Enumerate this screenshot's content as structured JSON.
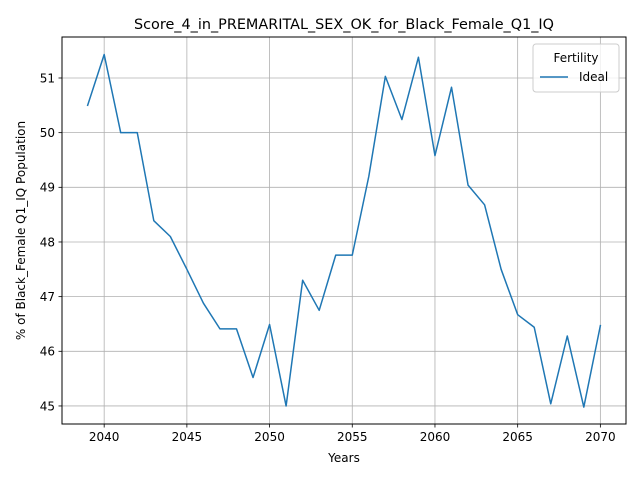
{
  "chart_data": {
    "type": "line",
    "title": "Score_4_in_PREMARITAL_SEX_OK_for_Black_Female_Q1_IQ",
    "xlabel": "Years",
    "ylabel": "% of Black_Female Q1_IQ Population",
    "xlim": [
      2037.45,
      2071.55
    ],
    "ylim": [
      44.67,
      51.75
    ],
    "xticks": [
      2040,
      2045,
      2050,
      2055,
      2060,
      2065,
      2070
    ],
    "yticks": [
      45,
      46,
      47,
      48,
      49,
      50,
      51
    ],
    "grid": true,
    "legend": {
      "title": "Fertility",
      "placement": "top-right"
    },
    "series": [
      {
        "name": "Ideal",
        "color": "#1f77b4",
        "x": [
          2039,
          2040,
          2041,
          2042,
          2043,
          2044,
          2045,
          2046,
          2047,
          2048,
          2049,
          2050,
          2051,
          2052,
          2053,
          2054,
          2055,
          2056,
          2057,
          2058,
          2059,
          2060,
          2061,
          2062,
          2063,
          2064,
          2065,
          2066,
          2067,
          2068,
          2069,
          2070
        ],
        "y": [
          50.5,
          51.43,
          50.0,
          50.0,
          48.39,
          48.1,
          47.5,
          46.88,
          46.41,
          46.41,
          45.52,
          46.49,
          45.0,
          47.3,
          46.75,
          47.76,
          47.76,
          49.2,
          51.03,
          50.24,
          51.38,
          49.58,
          50.83,
          49.04,
          48.68,
          47.5,
          46.67,
          46.44,
          45.04,
          46.28,
          44.98,
          46.47
        ]
      }
    ]
  }
}
